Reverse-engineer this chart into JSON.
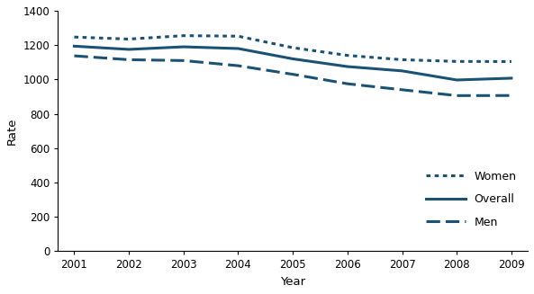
{
  "years": [
    2001,
    2002,
    2003,
    2004,
    2005,
    2006,
    2007,
    2008,
    2009
  ],
  "women": [
    1246.9,
    1235.0,
    1255.0,
    1252.0,
    1185.0,
    1140.0,
    1115.0,
    1105.0,
    1104.2
  ],
  "overall": [
    1193.8,
    1175.0,
    1190.0,
    1180.0,
    1120.0,
    1075.0,
    1050.0,
    997.0,
    1007.5
  ],
  "men": [
    1137.5,
    1115.0,
    1110.0,
    1080.0,
    1030.0,
    975.0,
    940.0,
    906.0,
    906.6
  ],
  "color": "#1a5276",
  "ylim": [
    0,
    1400
  ],
  "yticks": [
    0,
    200,
    400,
    600,
    800,
    1000,
    1200,
    1400
  ],
  "xlabel": "Year",
  "ylabel": "Rate"
}
